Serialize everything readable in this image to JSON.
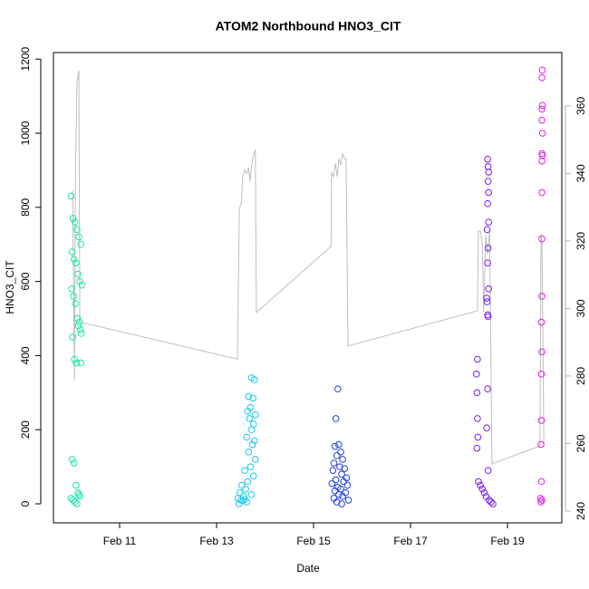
{
  "chart_data": {
    "type": "scatter",
    "title": "ATOM2 Northbound HNO3_CIT",
    "xlabel": "Date",
    "ylabel": "HNO3_CIT",
    "xlim": [
      9.636,
      20.12
    ],
    "xticks": [
      {
        "value": 11,
        "label": "Feb 11"
      },
      {
        "value": 13,
        "label": "Feb 13"
      },
      {
        "value": 15,
        "label": "Feb 15"
      },
      {
        "value": 17,
        "label": "Feb 17"
      },
      {
        "value": 19,
        "label": "Feb 19"
      }
    ],
    "ylim": [
      -51.3,
      1217.6
    ],
    "yticks": [
      0,
      200,
      400,
      600,
      800,
      1000,
      1200
    ],
    "y2lim": [
      236.5,
      375.8
    ],
    "y2ticks": [
      240,
      260,
      280,
      300,
      320,
      340,
      360
    ],
    "series": [
      {
        "color": "#19e6a8",
        "x": [
          10.0,
          10.04,
          10.08,
          10.12,
          10.16,
          10.2,
          10.02,
          10.06,
          10.1,
          10.14,
          10.18,
          10.22,
          10.01,
          10.05,
          10.09,
          10.13,
          10.17,
          10.21,
          10.03,
          10.07,
          10.11,
          10.15,
          10.19,
          10.02,
          10.06,
          10.1,
          10.14,
          10.18,
          10.0,
          10.04,
          10.08,
          10.12,
          10.16,
          10.2
        ],
        "values": [
          830,
          770,
          760,
          740,
          720,
          700,
          680,
          660,
          650,
          620,
          600,
          590,
          580,
          560,
          540,
          500,
          490,
          460,
          450,
          390,
          380,
          480,
          470,
          120,
          110,
          50,
          30,
          20,
          15,
          10,
          5,
          0,
          25,
          380
        ]
      },
      {
        "color": "#19c8f0",
        "x": [
          13.72,
          13.78,
          13.66,
          13.75,
          13.7,
          13.64,
          13.8,
          13.68,
          13.76,
          13.72,
          13.62,
          13.78,
          13.74,
          13.66,
          13.8,
          13.7,
          13.58,
          13.76,
          13.64,
          13.52,
          13.6,
          13.48,
          13.56,
          13.44,
          13.5,
          13.62,
          13.46,
          13.54,
          13.58,
          13.72
        ],
        "values": [
          340,
          335,
          290,
          285,
          260,
          250,
          240,
          230,
          215,
          200,
          180,
          170,
          160,
          140,
          120,
          100,
          90,
          75,
          60,
          50,
          40,
          30,
          20,
          15,
          10,
          5,
          0,
          8,
          12,
          25
        ]
      },
      {
        "color": "#1f3fe8",
        "x": [
          15.5,
          15.46,
          15.52,
          15.44,
          15.56,
          15.48,
          15.6,
          15.42,
          15.54,
          15.64,
          15.4,
          15.58,
          15.68,
          15.46,
          15.62,
          15.38,
          15.7,
          15.5,
          15.56,
          15.44,
          15.66,
          15.52,
          15.6,
          15.42,
          15.72,
          15.48,
          15.58
        ],
        "values": [
          310,
          230,
          160,
          155,
          140,
          130,
          120,
          110,
          100,
          95,
          90,
          80,
          70,
          65,
          60,
          55,
          50,
          45,
          40,
          35,
          30,
          25,
          20,
          15,
          10,
          5,
          0
        ]
      },
      {
        "color": "#7a1fe8",
        "x": [
          18.59,
          18.6,
          18.61,
          18.6,
          18.61,
          18.59,
          18.61,
          18.58,
          18.6,
          18.59,
          18.61,
          18.57,
          18.58,
          18.59,
          18.6,
          18.38,
          18.36,
          18.59,
          18.37,
          18.38,
          18.57,
          18.39,
          18.37,
          18.6,
          18.4,
          18.44,
          18.48,
          18.52,
          18.56,
          18.62,
          18.66,
          18.7
        ],
        "values": [
          930,
          910,
          895,
          870,
          840,
          810,
          760,
          740,
          690,
          650,
          580,
          555,
          545,
          510,
          505,
          390,
          350,
          310,
          300,
          230,
          205,
          180,
          150,
          90,
          60,
          50,
          40,
          30,
          20,
          10,
          5,
          0
        ]
      },
      {
        "color": "#e21fe8",
        "x": [
          19.72,
          19.71,
          19.72,
          19.71,
          19.71,
          19.72,
          19.71,
          19.72,
          19.71,
          19.71,
          19.71,
          19.71,
          19.7,
          19.71,
          19.7,
          19.7,
          19.69,
          19.7,
          19.68,
          19.71,
          19.69
        ],
        "values": [
          1170,
          1150,
          1075,
          1065,
          1035,
          1000,
          945,
          940,
          925,
          840,
          715,
          560,
          490,
          410,
          350,
          225,
          160,
          60,
          15,
          10,
          5
        ]
      },
      {
        "type": "line",
        "axis": "y2",
        "color": "#bebebe",
        "x": [
          10.03,
          10.07,
          10.09,
          10.1,
          10.12,
          10.14,
          10.16,
          10.18,
          13.43,
          13.47,
          13.51,
          13.54,
          13.58,
          13.62,
          13.66,
          13.69,
          13.73,
          13.77,
          13.8,
          13.82,
          15.36,
          15.37,
          15.41,
          15.45,
          15.49,
          15.52,
          15.56,
          15.6,
          15.64,
          15.67,
          15.71,
          18.38,
          18.4,
          18.44,
          18.48,
          18.51,
          18.55,
          18.59,
          18.63,
          18.68,
          19.67,
          19.69,
          19.71,
          19.75
        ],
        "values": [
          335,
          278.7,
          343,
          348,
          367,
          368.6,
          370.5,
          296,
          285,
          329.7,
          331,
          339,
          341,
          340,
          341.7,
          337.7,
          343,
          345.8,
          347,
          298.8,
          318.4,
          340.4,
          339,
          343,
          339,
          344.4,
          342.5,
          345.8,
          344.4,
          344.4,
          288.9,
          299.3,
          323,
          323,
          318.9,
          298.8,
          321.6,
          316.2,
          323,
          254,
          259.3,
          322,
          319.5,
          259.9
        ]
      }
    ]
  }
}
